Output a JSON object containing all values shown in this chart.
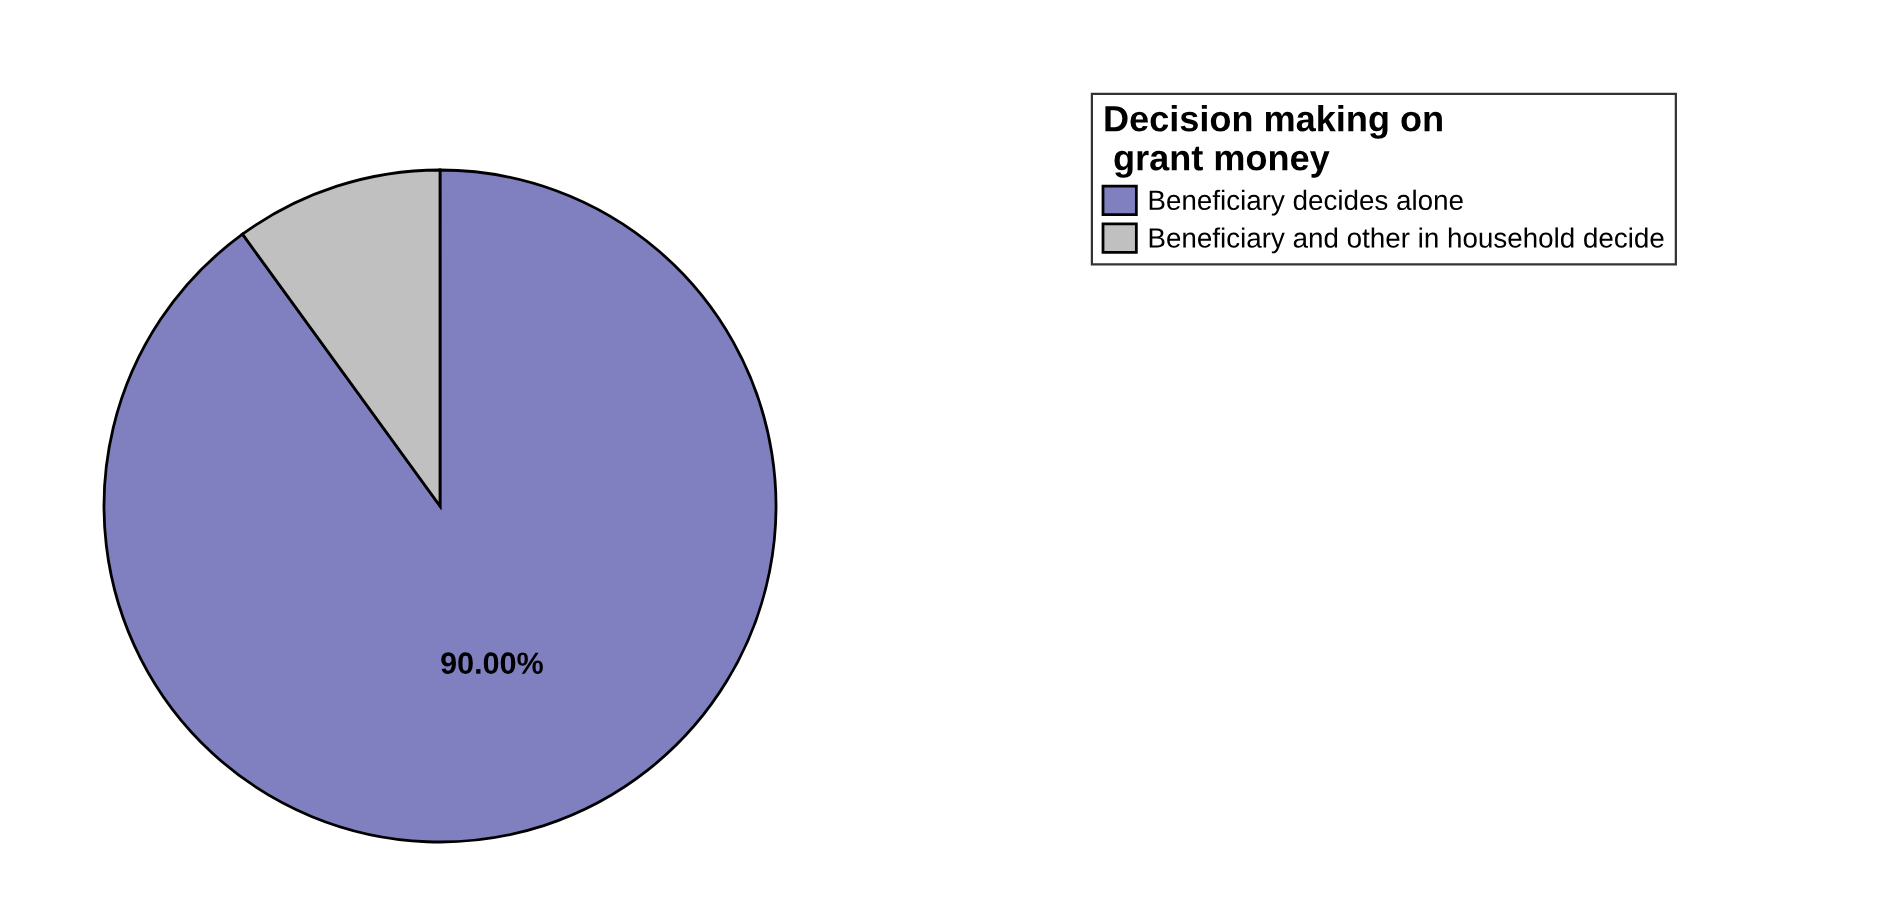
{
  "chart_data": {
    "type": "pie",
    "legend_title": "Decision making on\n grant money",
    "categories": [
      "Beneficiary decides alone",
      "Beneficiary and other in household decide"
    ],
    "values": [
      90,
      10
    ],
    "colors": [
      "#8080c0",
      "#c0c0c0"
    ],
    "value_labels": [
      "90.00%",
      null
    ],
    "legend": "right"
  }
}
